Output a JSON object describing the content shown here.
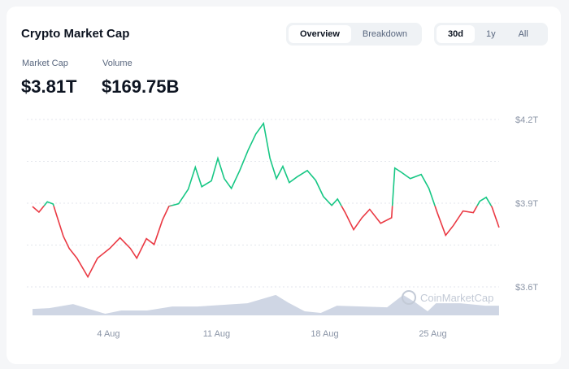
{
  "header": {
    "title": "Crypto Market Cap",
    "view_tabs": [
      "Overview",
      "Breakdown"
    ],
    "active_view": "Overview",
    "range_tabs": [
      "30d",
      "1y",
      "All"
    ],
    "active_range": "30d"
  },
  "stats": {
    "market_cap_label": "Market Cap",
    "market_cap_value": "$3.81T",
    "volume_label": "Volume",
    "volume_value": "$169.75B"
  },
  "watermark": "CoinMarketCap",
  "colors": {
    "up": "#16c784",
    "down": "#ea3943",
    "volume": "#cfd6e4",
    "grid": "#e3e6ec"
  },
  "chart_data": {
    "type": "line",
    "title": "",
    "xlabel": "",
    "ylabel": "",
    "x_ticks": [
      "4 Aug",
      "11 Aug",
      "18 Aug",
      "25 Aug"
    ],
    "y_ticks": [
      "$3.6T",
      "$3.9T",
      "$4.2T"
    ],
    "ylim": [
      3.6,
      4.2
    ],
    "grid": true,
    "baseline": 3.89,
    "series": [
      {
        "x": [
          "07-30 07h",
          "07-30 17h",
          "07-31 06h",
          "07-31 15h",
          "07-31 21h",
          "08-01 07h",
          "08-01 16h",
          "08-02 04h",
          "08-02 21h",
          "08-03 12h",
          "08-04 07h",
          "08-04 23h",
          "08-05 15h",
          "08-06 01h",
          "08-06 16h",
          "08-07 04h",
          "08-07 17h",
          "08-08 03h",
          "08-08 18h",
          "08-09 09h",
          "08-09 20h",
          "08-10 06h",
          "08-10 21h",
          "08-11 07h",
          "08-11 17h",
          "08-12 04h",
          "08-12 17h",
          "08-13 06h",
          "08-13 18h",
          "08-14 06h",
          "08-14 16h",
          "08-15 02h",
          "08-15 12h",
          "08-15 22h",
          "08-16 10h",
          "08-17 02h",
          "08-17 15h",
          "08-18 03h",
          "08-18 16h",
          "08-19 01h",
          "08-19 13h",
          "08-20 02h",
          "08-20 15h",
          "08-21 03h",
          "08-21 20h",
          "08-22 13h",
          "08-22 18h",
          "08-23 04h",
          "08-23 18h",
          "08-24 11h",
          "08-24 23h",
          "08-25 12h",
          "08-26 01h",
          "08-26 13h",
          "08-27 04h",
          "08-27 20h",
          "08-28 06h",
          "08-28 16h",
          "08-29 01h",
          "08-29 12h"
        ],
        "values": [
          3.888,
          3.868,
          3.905,
          3.897,
          3.853,
          3.781,
          3.738,
          3.703,
          3.636,
          3.703,
          3.738,
          3.776,
          3.738,
          3.703,
          3.773,
          3.752,
          3.84,
          3.889,
          3.898,
          3.95,
          4.029,
          3.959,
          3.98,
          4.061,
          3.988,
          3.953,
          4.017,
          4.09,
          4.148,
          4.186,
          4.061,
          3.988,
          4.032,
          3.974,
          3.994,
          4.017,
          3.982,
          3.924,
          3.892,
          3.915,
          3.866,
          3.805,
          3.848,
          3.878,
          3.828,
          3.848,
          4.026,
          4.011,
          3.988,
          4.003,
          3.953,
          3.866,
          3.785,
          3.82,
          3.872,
          3.866,
          3.907,
          3.921,
          3.886,
          3.813
        ]
      }
    ],
    "volume_relative": {
      "x": [
        "07-30 07h",
        "07-31 09h",
        "08-01 22h",
        "08-02 23h",
        "08-04 00h",
        "08-05 01h",
        "08-06 17h",
        "08-08 08h",
        "08-09 23h",
        "08-11 14h",
        "08-13 05h",
        "08-15 01h",
        "08-15 20h",
        "08-16 22h",
        "08-17 23h",
        "08-19 00h",
        "08-20 15h",
        "08-22 06h",
        "08-23 07h",
        "08-24 02h",
        "08-24 21h",
        "08-25 10h",
        "08-27 00h",
        "08-28 15h",
        "08-29 12h"
      ],
      "values": [
        0.24,
        0.27,
        0.42,
        0.24,
        0.06,
        0.18,
        0.18,
        0.33,
        0.33,
        0.39,
        0.45,
        0.76,
        0.48,
        0.15,
        0.09,
        0.36,
        0.33,
        0.3,
        0.76,
        0.48,
        0.15,
        0.45,
        0.45,
        0.36,
        0.36
      ]
    }
  }
}
